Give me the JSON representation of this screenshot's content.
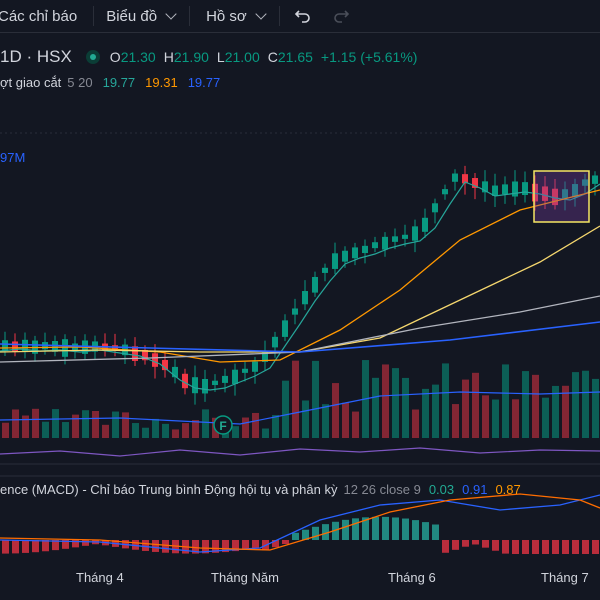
{
  "toolbar": {
    "indicators_label": "Các chỉ báo",
    "chart_label": "Biểu đồ",
    "profile_label": "Hồ sơ"
  },
  "legend": {
    "interval_exchange": "1D · HSX",
    "open_key": "O",
    "open": "21.30",
    "high_key": "H",
    "high": "21.90",
    "low_key": "L",
    "low": "21.00",
    "close_key": "C",
    "close": "21.65",
    "change": "+1.15 (+5.61%)"
  },
  "ma_legend": {
    "title": "ợt giao cắt",
    "params": "5 20",
    "v1": "19.77",
    "v2": "19.31",
    "v3": "19.77"
  },
  "volume_label": "97M",
  "macd_legend": {
    "title": "ence (MACD) - Chỉ báo Trung bình Động hội tụ và phân kỳ",
    "params": "12 26 close 9",
    "v1": "0.03",
    "v2": "0.91",
    "v3": "0.87"
  },
  "x_axis": [
    "Tháng 4",
    "Tháng Năm",
    "Tháng 6",
    "Tháng 7"
  ],
  "event_marker": "F",
  "colors": {
    "background": "#131722",
    "up": "#089981",
    "down": "#f23645",
    "ma_fast": "#26a69a",
    "ma_slow": "#ff9800",
    "ma_long": "#2962ff",
    "macd": "#2962ff",
    "signal": "#ff6d00",
    "highlight": "#f5e663"
  },
  "chart_data": {
    "type": "candlestick",
    "x": [
      "Tháng 4",
      "Tháng Năm",
      "Tháng 6",
      "Tháng 7"
    ],
    "last_ohlc": {
      "open": 21.3,
      "high": 21.9,
      "low": 21.0,
      "close": 21.65
    },
    "change": 1.15,
    "change_pct": 5.61,
    "ma_values": [
      19.77,
      19.31,
      19.77
    ],
    "macd_values": [
      0.03,
      0.91,
      0.87
    ]
  }
}
